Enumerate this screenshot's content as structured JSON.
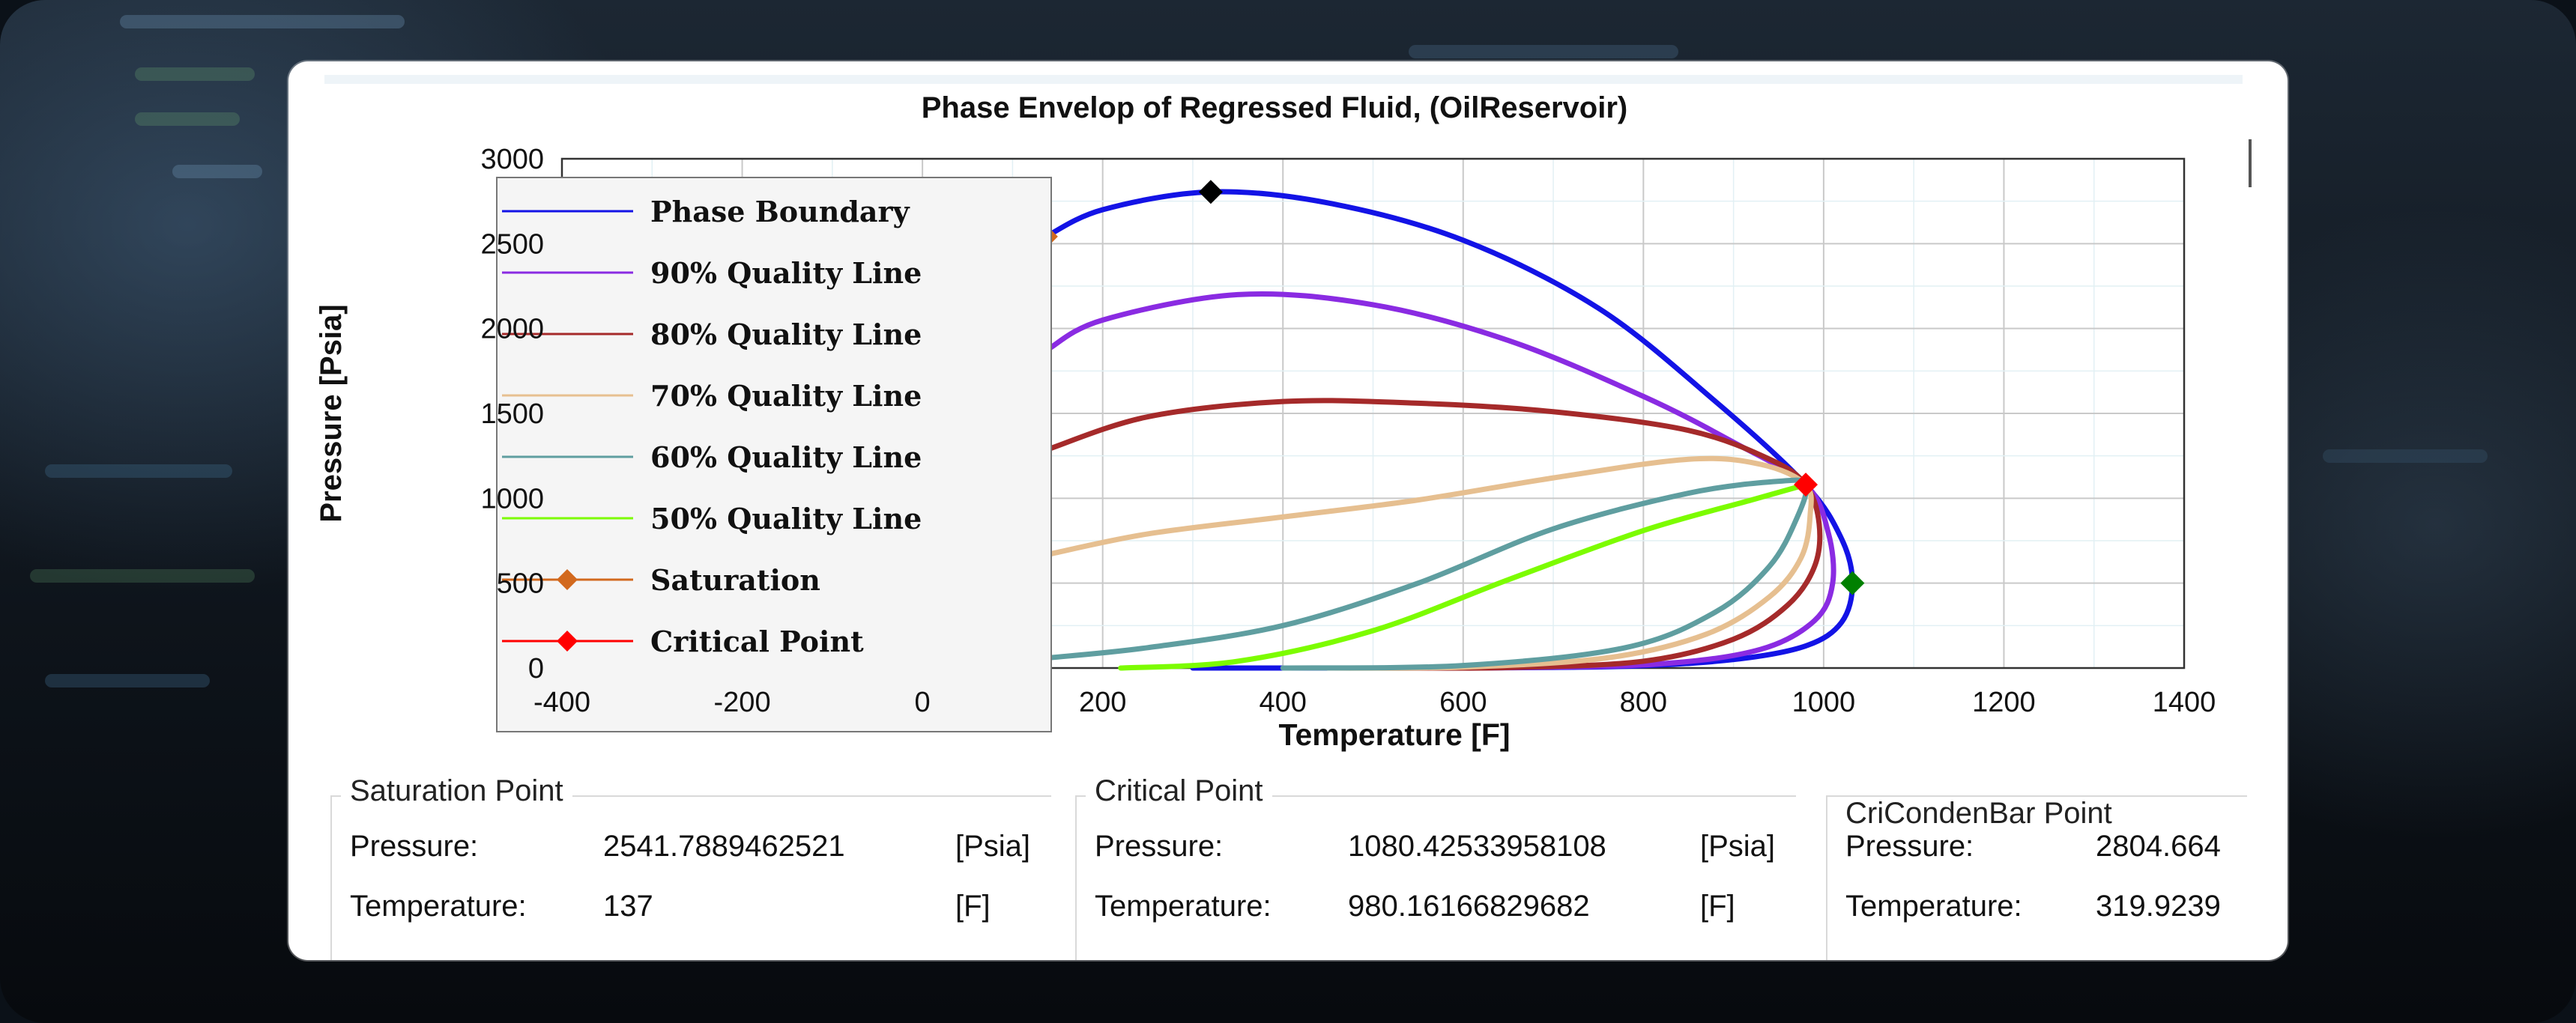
{
  "chart_data": {
    "type": "line",
    "title": "Phase Envelop of Regressed Fluid, (OilReservoir)",
    "xlabel": "Temperature [F]",
    "ylabel": "Pressure [Psia]",
    "xlim": [
      -400,
      1400
    ],
    "ylim": [
      0,
      3000
    ],
    "x_ticks": [
      -400,
      -200,
      0,
      200,
      400,
      600,
      800,
      1000,
      1200,
      1400
    ],
    "y_ticks": [
      0,
      500,
      1000,
      1500,
      2000,
      2500,
      3000
    ],
    "grid": true,
    "legend_position": "top-left",
    "series": [
      {
        "name": "Phase Boundary",
        "color": "#1313e6",
        "x": [
          137,
          200,
          320,
          450,
          600,
          750,
          880,
          980,
          1020,
          1032,
          1020,
          980,
          900,
          780,
          600,
          450,
          300
        ],
        "y": [
          2541,
          2700,
          2805,
          2740,
          2520,
          2120,
          1570,
          1080,
          760,
          500,
          270,
          130,
          50,
          10,
          1,
          0,
          0
        ]
      },
      {
        "name": "90% Quality Line",
        "color": "#8a2be2",
        "x": [
          140,
          200,
          350,
          500,
          650,
          800,
          900,
          980,
          1005,
          1010,
          990,
          930,
          820,
          650,
          500
        ],
        "y": [
          1880,
          2050,
          2200,
          2140,
          1930,
          1600,
          1330,
          1080,
          800,
          500,
          280,
          110,
          25,
          2,
          0
        ]
      },
      {
        "name": "80% Quality Line",
        "color": "#a52a2a",
        "x": [
          140,
          250,
          400,
          550,
          700,
          850,
          940,
          980,
          995,
          990,
          960,
          900,
          800,
          650,
          500
        ],
        "y": [
          1290,
          1480,
          1570,
          1560,
          1510,
          1400,
          1230,
          1080,
          850,
          600,
          370,
          170,
          40,
          3,
          0
        ]
      },
      {
        "name": "70% Quality Line",
        "color": "#e6bf90",
        "x": [
          140,
          250,
          400,
          550,
          700,
          850,
          930,
          980,
          985,
          975,
          940,
          870,
          760,
          600,
          450
        ],
        "y": [
          670,
          790,
          890,
          990,
          1120,
          1230,
          1200,
          1080,
          900,
          650,
          420,
          200,
          60,
          5,
          0
        ]
      },
      {
        "name": "60% Quality Line",
        "color": "#5f9ea0",
        "x": [
          140,
          250,
          400,
          550,
          700,
          850,
          950,
          980,
          970,
          940,
          880,
          780,
          600,
          400
        ],
        "y": [
          60,
          120,
          250,
          500,
          820,
          1030,
          1100,
          1080,
          880,
          600,
          330,
          120,
          15,
          0
        ]
      },
      {
        "name": "50% Quality Line",
        "color": "#7cfc00",
        "x": [
          220,
          350,
          500,
          650,
          800,
          920,
          980
        ],
        "y": [
          0,
          40,
          220,
          520,
          810,
          990,
          1080
        ]
      }
    ],
    "markers": [
      {
        "name": "Saturation",
        "color": "#d2691e",
        "x": 137,
        "y": 2541.7889462521
      },
      {
        "name": "Critical Point",
        "color": "#ff0000",
        "x": 980.16166829682,
        "y": 1080.42533958108
      },
      {
        "name": "",
        "color": "#000000",
        "x": 319.9239,
        "y": 2804.664
      },
      {
        "name": "",
        "color": "#008000",
        "x": 1032,
        "y": 500
      }
    ]
  },
  "panels": [
    {
      "title": "Saturation Point",
      "pressure_label": "Pressure:",
      "pressure_value": "2541.7889462521",
      "pressure_unit": "[Psia]",
      "temperature_label": "Temperature:",
      "temperature_value": "137",
      "temperature_unit": "[F]"
    },
    {
      "title": "Critical Point",
      "pressure_label": "Pressure:",
      "pressure_value": "1080.42533958108",
      "pressure_unit": "[Psia]",
      "temperature_label": "Temperature:",
      "temperature_value": "980.16166829682",
      "temperature_unit": "[F]"
    },
    {
      "title": "CriCondenBar Point",
      "pressure_label": "Pressure:",
      "pressure_value": "2804.664",
      "temperature_label": "Temperature:",
      "temperature_value": "319.9239"
    }
  ]
}
